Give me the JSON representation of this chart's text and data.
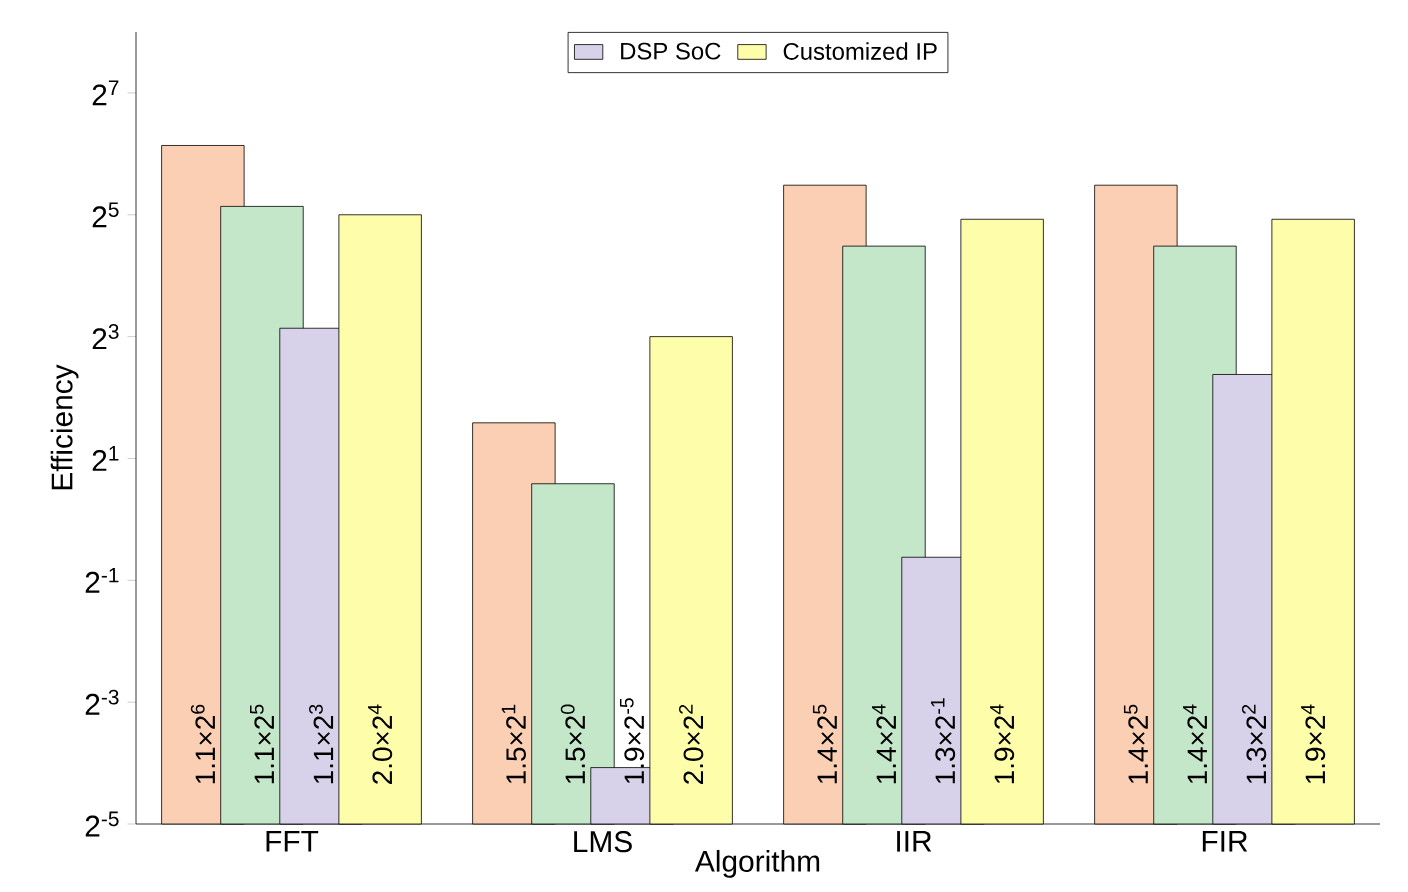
{
  "chart_data": {
    "type": "bar",
    "xlabel": "Algorithm",
    "ylabel": "Efficiency",
    "categories": [
      "FFT",
      "LMS",
      "IIR",
      "FIR"
    ],
    "series": [
      {
        "color": "#fbcfb3",
        "values": [
          70.4,
          3,
          44.8,
          44.8
        ],
        "value_labels": [
          "1.1×2$^{6}$",
          "1.5×2$^{1}$",
          "1.4×2$^{5}$",
          "1.4×2$^{5}$"
        ]
      },
      {
        "color": "#c4e6c9",
        "values": [
          35.2,
          1.5,
          22.4,
          22.4
        ],
        "value_labels": [
          "1.1×2$^{5}$",
          "1.5×2$^{0}$",
          "1.4×2$^{4}$",
          "1.4×2$^{4}$"
        ]
      },
      {
        "name": "DSP SoC",
        "color": "#d7d1e9",
        "values": [
          8.8,
          0.059375,
          0.65,
          5.2
        ],
        "value_labels": [
          "1.1×2$^{3}$",
          "1.9×2$^{-5}$",
          "1.3×2$^{-1}$",
          "1.3×2$^{2}$"
        ]
      },
      {
        "name": "Customized IP",
        "color": "#fdfdaa",
        "values": [
          32,
          8,
          30.4,
          30.4
        ],
        "value_labels": [
          "2.0×2$^{4}$",
          "2.0×2$^{2}$",
          "1.9×2$^{4}$",
          "1.9×2$^{4}$"
        ]
      }
    ],
    "log": "y",
    "ylim": [
      0.03125,
      256
    ],
    "yticks": [
      {
        "value": 0.03125,
        "label": "2$^{-5}$"
      },
      {
        "value": 0.125,
        "label": "2$^{-3}$"
      },
      {
        "value": 0.5,
        "label": "2$^{-1}$"
      },
      {
        "value": 2,
        "label": "2$^{1}$"
      },
      {
        "value": 8,
        "label": "2$^{3}$"
      },
      {
        "value": 32,
        "label": "2$^{5}$"
      },
      {
        "value": 128,
        "label": "2$^{7}$"
      }
    ],
    "legend": "top",
    "grid": false
  }
}
